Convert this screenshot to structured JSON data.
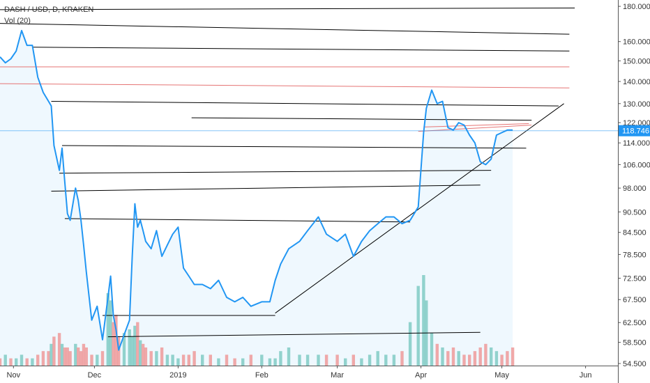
{
  "legend": {
    "symbol_line": "DASH / USD, D, KRAKEN",
    "indicator_line": "Vol (20)"
  },
  "chart_data": {
    "type": "line",
    "y_scale": "log",
    "ylim": [
      54.5,
      183
    ],
    "y_ticks": [
      "180.000",
      "160.000",
      "150.000",
      "140.000",
      "130.000",
      "122.000",
      "114.000",
      "106.000",
      "98.000",
      "90.500",
      "84.500",
      "78.500",
      "72.500",
      "67.500",
      "62.500",
      "58.500",
      "54.500"
    ],
    "x_ticks": [
      "Nov",
      "Dec",
      "2019",
      "Feb",
      "Mar",
      "Apr",
      "May",
      "Jun"
    ],
    "current_price": "118.746",
    "price_series": {
      "dates": [
        "2018-10-27",
        "2018-10-29",
        "2018-10-31",
        "2018-11-02",
        "2018-11-04",
        "2018-11-06",
        "2018-11-08",
        "2018-11-10",
        "2018-11-12",
        "2018-11-14",
        "2018-11-15",
        "2018-11-16",
        "2018-11-18",
        "2018-11-19",
        "2018-11-20",
        "2018-11-21",
        "2018-11-22",
        "2018-11-24",
        "2018-11-25",
        "2018-11-26",
        "2018-11-27",
        "2018-11-28",
        "2018-11-30",
        "2018-12-02",
        "2018-12-04",
        "2018-12-06",
        "2018-12-07",
        "2018-12-08",
        "2018-12-09",
        "2018-12-10",
        "2018-12-12",
        "2018-12-14",
        "2018-12-15",
        "2018-12-16",
        "2018-12-17",
        "2018-12-18",
        "2018-12-19",
        "2018-12-20",
        "2018-12-22",
        "2018-12-24",
        "2018-12-26",
        "2018-12-28",
        "2018-12-30",
        "2019-01-01",
        "2019-01-03",
        "2019-01-05",
        "2019-01-07",
        "2019-01-10",
        "2019-01-13",
        "2019-01-16",
        "2019-01-19",
        "2019-01-22",
        "2019-01-25",
        "2019-01-28",
        "2019-02-01",
        "2019-02-04",
        "2019-02-06",
        "2019-02-08",
        "2019-02-11",
        "2019-02-15",
        "2019-02-18",
        "2019-02-22",
        "2019-02-25",
        "2019-03-01",
        "2019-03-04",
        "2019-03-07",
        "2019-03-10",
        "2019-03-13",
        "2019-03-16",
        "2019-03-19",
        "2019-03-22",
        "2019-03-25",
        "2019-03-28",
        "2019-03-31",
        "2019-04-02",
        "2019-04-03",
        "2019-04-05",
        "2019-04-07",
        "2019-04-09",
        "2019-04-11",
        "2019-04-13",
        "2019-04-15",
        "2019-04-17",
        "2019-04-19",
        "2019-04-21",
        "2019-04-23",
        "2019-04-25",
        "2019-04-27",
        "2019-04-29",
        "2019-05-01",
        "2019-05-03",
        "2019-05-05"
      ],
      "values": [
        152,
        149,
        151,
        155,
        166,
        158,
        158,
        142,
        135,
        131,
        129,
        113,
        104,
        112,
        100,
        90,
        88,
        98,
        94,
        88,
        81,
        74,
        63,
        66,
        59,
        68,
        73,
        64,
        61,
        57,
        60,
        63,
        78,
        93,
        86,
        88,
        85,
        82,
        80,
        85,
        78,
        81,
        84,
        86,
        75,
        73,
        71,
        71,
        70,
        72,
        68,
        67,
        68,
        66,
        67,
        67,
        72,
        76,
        80,
        82,
        85,
        89,
        84,
        82,
        84,
        78,
        82,
        85,
        87,
        89,
        89,
        87,
        88,
        92,
        118,
        128,
        136,
        130,
        131,
        120,
        119,
        122,
        121,
        117,
        114,
        107,
        106,
        108,
        117,
        118,
        119,
        119
      ]
    },
    "volume_series": {
      "values": [
        2,
        3,
        2,
        2,
        3,
        2,
        2,
        3,
        4,
        4,
        6,
        8,
        9,
        6,
        5,
        5,
        4,
        6,
        5,
        4,
        6,
        5,
        3,
        3,
        4,
        20,
        18,
        12,
        14,
        8,
        9,
        10,
        8,
        11,
        12,
        7,
        6,
        5,
        4,
        4,
        5,
        3,
        3,
        2,
        3,
        3,
        4,
        3,
        3,
        2,
        3,
        2,
        2,
        3,
        3,
        2,
        2,
        4,
        5,
        3,
        3,
        3,
        3,
        3,
        2,
        3,
        2,
        3,
        4,
        3,
        3,
        4,
        12,
        22,
        25,
        18,
        9,
        6,
        5,
        4,
        5,
        4,
        3,
        3,
        4,
        5,
        6,
        5,
        4,
        3,
        4,
        5
      ],
      "colors": [
        "#ef9a9a",
        "#80cbc4",
        "#ef9a9a",
        "#80cbc4",
        "#80cbc4",
        "#ef9a9a",
        "#80cbc4",
        "#ef9a9a",
        "#ef9a9a",
        "#ef9a9a",
        "#80cbc4",
        "#ef9a9a",
        "#ef9a9a",
        "#80cbc4",
        "#ef9a9a",
        "#ef9a9a",
        "#ef9a9a",
        "#80cbc4",
        "#ef9a9a",
        "#ef9a9a",
        "#ef9a9a",
        "#ef9a9a",
        "#ef9a9a",
        "#80cbc4",
        "#ef9a9a",
        "#80cbc4",
        "#80cbc4",
        "#ef9a9a",
        "#ef9a9a",
        "#ef9a9a",
        "#80cbc4",
        "#80cbc4",
        "#80cbc4",
        "#80cbc4",
        "#ef9a9a",
        "#80cbc4",
        "#ef9a9a",
        "#ef9a9a",
        "#ef9a9a",
        "#80cbc4",
        "#ef9a9a",
        "#80cbc4",
        "#80cbc4",
        "#80cbc4",
        "#ef9a9a",
        "#ef9a9a",
        "#ef9a9a",
        "#80cbc4",
        "#ef9a9a",
        "#80cbc4",
        "#ef9a9a",
        "#ef9a9a",
        "#80cbc4",
        "#ef9a9a",
        "#80cbc4",
        "#80cbc4",
        "#80cbc4",
        "#80cbc4",
        "#80cbc4",
        "#80cbc4",
        "#80cbc4",
        "#80cbc4",
        "#ef9a9a",
        "#ef9a9a",
        "#80cbc4",
        "#ef9a9a",
        "#80cbc4",
        "#80cbc4",
        "#80cbc4",
        "#80cbc4",
        "#80cbc4",
        "#ef9a9a",
        "#80cbc4",
        "#80cbc4",
        "#80cbc4",
        "#80cbc4",
        "#80cbc4",
        "#ef9a9a",
        "#80cbc4",
        "#ef9a9a",
        "#ef9a9a",
        "#80cbc4",
        "#ef9a9a",
        "#ef9a9a",
        "#ef9a9a",
        "#ef9a9a",
        "#ef9a9a",
        "#80cbc4",
        "#80cbc4",
        "#ef9a9a",
        "#ef9a9a",
        "#ef9a9a"
      ]
    },
    "trend_lines": [
      {
        "color": "#000000",
        "from": [
          "2018-10-27",
          178
        ],
        "to": [
          "2019-05-28",
          179
        ]
      },
      {
        "color": "#000000",
        "from": [
          "2018-10-27",
          170
        ],
        "to": [
          "2019-05-26",
          164
        ]
      },
      {
        "color": "#000000",
        "from": [
          "2018-11-08",
          157
        ],
        "to": [
          "2019-05-26",
          155
        ]
      },
      {
        "color": "#e57373",
        "from": [
          "2018-10-27",
          147
        ],
        "to": [
          "2019-05-26",
          147
        ]
      },
      {
        "color": "#e57373",
        "from": [
          "2018-10-27",
          139
        ],
        "to": [
          "2019-05-26",
          137
        ]
      },
      {
        "color": "#000000",
        "from": [
          "2018-11-15",
          131
        ],
        "to": [
          "2019-05-22",
          129
        ]
      },
      {
        "color": "#000000",
        "from": [
          "2019-01-06",
          124
        ],
        "to": [
          "2019-05-12",
          123
        ]
      },
      {
        "color": "#000000",
        "from": [
          "2018-11-19",
          113
        ],
        "to": [
          "2019-05-10",
          112
        ]
      },
      {
        "color": "#000000",
        "from": [
          "2018-11-18",
          103
        ],
        "to": [
          "2019-04-27",
          104
        ]
      },
      {
        "color": "#000000",
        "from": [
          "2018-11-15",
          97
        ],
        "to": [
          "2019-04-23",
          99
        ]
      },
      {
        "color": "#000000",
        "from": [
          "2018-11-20",
          88.5
        ],
        "to": [
          "2019-03-28",
          87.5
        ]
      },
      {
        "color": "#000000",
        "from": [
          "2018-12-04",
          64
        ],
        "to": [
          "2019-02-06",
          64
        ]
      },
      {
        "color": "#000000",
        "from": [
          "2018-12-06",
          59.6
        ],
        "to": [
          "2019-04-23",
          60.5
        ]
      },
      {
        "color": "#000000",
        "from": [
          "2019-02-06",
          64.5
        ],
        "to": [
          "2019-05-24",
          130
        ]
      },
      {
        "color": "#e57373",
        "from": [
          "2019-03-31",
          118.5
        ],
        "to": [
          "2019-05-12",
          121
        ]
      },
      {
        "color": "#e57373",
        "from": [
          "2019-04-02",
          120.2
        ],
        "to": [
          "2019-05-11",
          121.6
        ]
      }
    ],
    "colors": {
      "price_line": "#2196f3",
      "area_fill": "#2196f3",
      "current_price_tag": "#2196f3",
      "volume_up": "#80cbc4",
      "volume_down": "#ef9a9a"
    }
  }
}
